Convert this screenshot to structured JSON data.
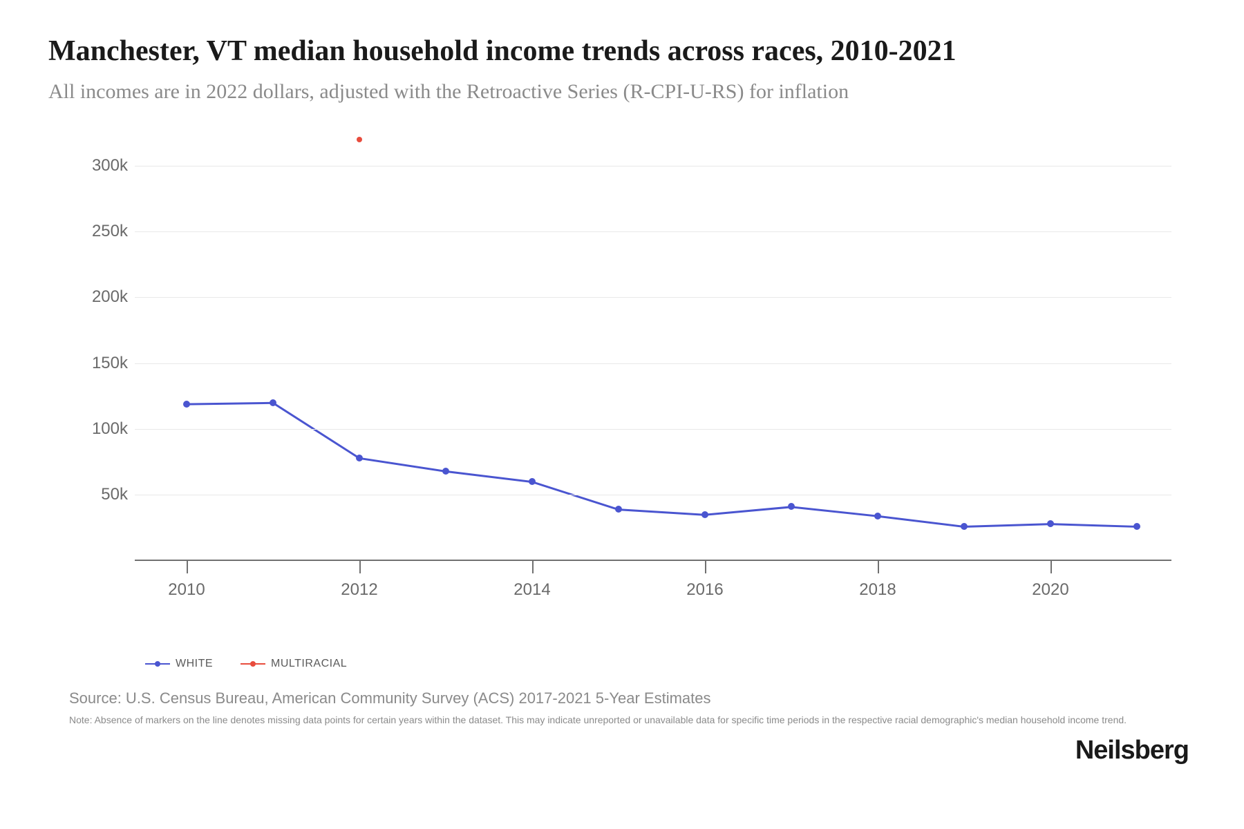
{
  "title": "Manchester, VT median household income trends across races, 2010-2021",
  "subtitle": "All incomes are in 2022 dollars, adjusted with the Retroactive Series (R-CPI-U-RS) for inflation",
  "source": "Source: U.S. Census Bureau, American Community Survey (ACS) 2017-2021 5-Year Estimates",
  "note": "Note: Absence of markers on the line denotes missing data points for certain years within the dataset. This may indicate unreported or unavailable data for specific time periods in the respective racial demographic's median household income trend.",
  "brand": "Neilsberg",
  "chart": {
    "type": "line",
    "background_color": "#ffffff",
    "grid_color": "#e8e8e8",
    "axis_color": "#707070",
    "label_color": "#6a6a6a",
    "label_fontsize": 24,
    "x": {
      "min": 2009.4,
      "max": 2021.4,
      "ticks": [
        2010,
        2012,
        2014,
        2016,
        2018,
        2020
      ],
      "tick_labels": [
        "2010",
        "2012",
        "2014",
        "2016",
        "2018",
        "2020"
      ]
    },
    "y": {
      "min": 0,
      "max": 320000,
      "ticks": [
        50000,
        100000,
        150000,
        200000,
        250000,
        300000
      ],
      "tick_labels": [
        "50k",
        "100k",
        "150k",
        "200k",
        "250k",
        "300k"
      ]
    },
    "series": [
      {
        "name": "WHITE",
        "color": "#4a55d0",
        "line_width": 3,
        "marker_size": 10,
        "points": [
          {
            "x": 2010,
            "y": 119000
          },
          {
            "x": 2011,
            "y": 120000
          },
          {
            "x": 2012,
            "y": 78000
          },
          {
            "x": 2013,
            "y": 68000
          },
          {
            "x": 2014,
            "y": 60000
          },
          {
            "x": 2015,
            "y": 39000
          },
          {
            "x": 2016,
            "y": 35000
          },
          {
            "x": 2017,
            "y": 41000
          },
          {
            "x": 2018,
            "y": 34000
          },
          {
            "x": 2019,
            "y": 26000
          },
          {
            "x": 2020,
            "y": 28000
          },
          {
            "x": 2021,
            "y": 26000
          }
        ]
      },
      {
        "name": "MULTIRACIAL",
        "color": "#e84c3d",
        "line_width": 3,
        "marker_size": 8,
        "points": [
          {
            "x": 2012,
            "y": 320000
          }
        ]
      }
    ],
    "legend": {
      "items": [
        {
          "label": "WHITE",
          "color": "#4a55d0"
        },
        {
          "label": "MULTIRACIAL",
          "color": "#e84c3d"
        }
      ]
    }
  }
}
